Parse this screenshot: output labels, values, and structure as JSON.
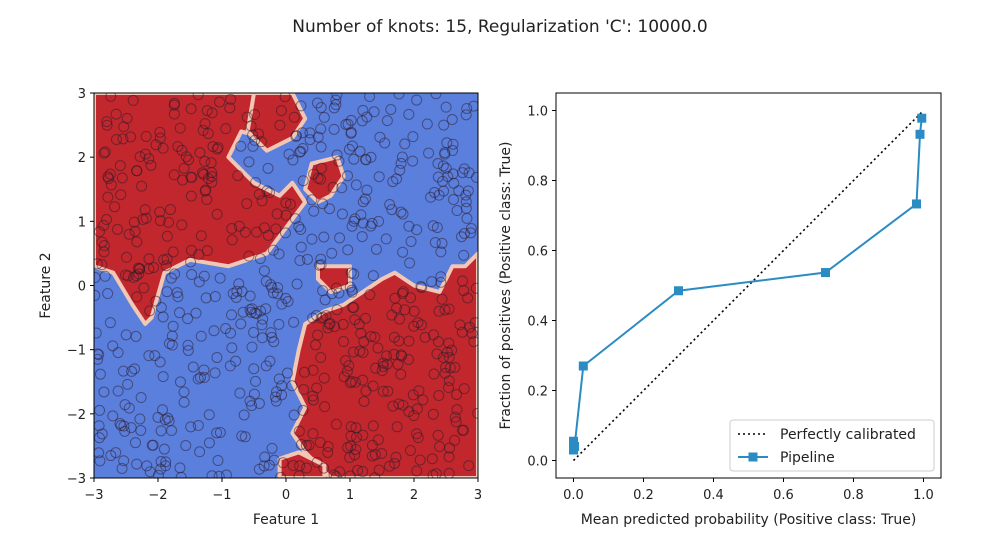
{
  "figure": {
    "suptitle": "Number of knots: 15, Regularization 'C': 10000.0"
  },
  "chart_data": [
    {
      "type": "scatter",
      "panel": "decision-boundary",
      "xlabel": "Feature 1",
      "ylabel": "Feature 2",
      "xlim": [
        -3,
        3
      ],
      "ylim": [
        -3,
        3
      ],
      "xticks": [
        "−3",
        "−2",
        "−1",
        "0",
        "1",
        "2",
        "3"
      ],
      "yticks": [
        "−3",
        "−2",
        "−1",
        "0",
        "1",
        "2",
        "3"
      ],
      "colors": {
        "positive_region": "#c1272d",
        "negative_region": "#5b7fdd",
        "boundary": "#f2c7b5"
      },
      "regions": [
        {
          "label": "True",
          "polygon": [
            [
              -3,
              3
            ],
            [
              -0.3,
              3
            ],
            [
              -0.3,
              2.3
            ],
            [
              -0.7,
              2.4
            ],
            [
              -0.9,
              2.0
            ],
            [
              -0.5,
              1.6
            ],
            [
              -0.1,
              1.4
            ],
            [
              0.1,
              1.6
            ],
            [
              0.3,
              1.3
            ],
            [
              0.0,
              0.9
            ],
            [
              -0.3,
              0.5
            ],
            [
              -0.9,
              0.3
            ],
            [
              -1.5,
              0.4
            ],
            [
              -1.9,
              0.2
            ],
            [
              -2.1,
              -0.5
            ],
            [
              -2.2,
              -0.6
            ],
            [
              -2.4,
              -0.3
            ],
            [
              -2.7,
              0.2
            ],
            [
              -3,
              0.3
            ]
          ]
        },
        {
          "label": "True",
          "polygon": [
            [
              -0.5,
              3
            ],
            [
              0.1,
              3
            ],
            [
              0.3,
              2.6
            ],
            [
              0.1,
              2.3
            ],
            [
              -0.3,
              2.1
            ],
            [
              -0.6,
              2.4
            ]
          ]
        },
        {
          "label": "True",
          "polygon": [
            [
              0.4,
              1.9
            ],
            [
              0.8,
              2.0
            ],
            [
              0.9,
              1.7
            ],
            [
              0.7,
              1.4
            ],
            [
              0.5,
              1.3
            ],
            [
              0.3,
              1.5
            ]
          ]
        },
        {
          "label": "True",
          "polygon": [
            [
              0.5,
              0.3
            ],
            [
              1.0,
              0.3
            ],
            [
              1.0,
              0.0
            ],
            [
              0.7,
              -0.1
            ],
            [
              0.5,
              0.1
            ]
          ]
        },
        {
          "label": "True",
          "polygon": [
            [
              3,
              -0.5
            ],
            [
              3,
              0.5
            ],
            [
              2.8,
              0.3
            ],
            [
              2.6,
              0.3
            ],
            [
              2.5,
              0.1
            ],
            [
              2.4,
              -0.1
            ],
            [
              2.0,
              0.0
            ],
            [
              1.7,
              0.2
            ],
            [
              1.5,
              0.1
            ],
            [
              1.2,
              -0.1
            ],
            [
              0.9,
              -0.3
            ],
            [
              0.6,
              -0.4
            ],
            [
              0.3,
              -0.6
            ],
            [
              0.2,
              -1.0
            ],
            [
              0.1,
              -1.5
            ],
            [
              0.3,
              -1.9
            ],
            [
              0.1,
              -2.3
            ],
            [
              0.3,
              -2.6
            ],
            [
              0.5,
              -2.8
            ],
            [
              0.7,
              -3
            ],
            [
              3,
              -3
            ]
          ]
        },
        {
          "label": "True",
          "polygon": [
            [
              -0.1,
              -3
            ],
            [
              0.6,
              -3
            ],
            [
              0.6,
              -2.8
            ],
            [
              0.2,
              -2.6
            ],
            [
              -0.1,
              -2.7
            ]
          ]
        }
      ]
    },
    {
      "type": "line",
      "panel": "calibration-curve",
      "xlabel": "Mean predicted probability (Positive class: True)",
      "ylabel": "Fraction of positives (Positive class: True)",
      "xlim": [
        -0.05,
        1.05
      ],
      "ylim": [
        -0.05,
        1.05
      ],
      "xticks": [
        "0.0",
        "0.2",
        "0.4",
        "0.6",
        "0.8",
        "1.0"
      ],
      "yticks": [
        "0.0",
        "0.2",
        "0.4",
        "0.6",
        "0.8",
        "1.0"
      ],
      "legend_position": "lower-right",
      "series": [
        {
          "name": "Perfectly calibrated",
          "style": "dotted",
          "color": "#000000",
          "x": [
            0,
            1
          ],
          "y": [
            0,
            1
          ]
        },
        {
          "name": "Pipeline",
          "style": "solid-square-markers",
          "color": "#2b8cc4",
          "x": [
            0.0,
            0.0,
            0.003,
            0.028,
            0.3,
            0.72,
            0.98,
            0.99,
            0.995
          ],
          "y": [
            0.03,
            0.055,
            0.04,
            0.27,
            0.485,
            0.537,
            0.733,
            0.932,
            0.978
          ]
        }
      ]
    }
  ]
}
